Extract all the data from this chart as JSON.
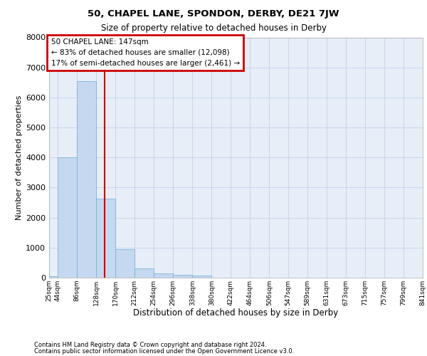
{
  "title": "50, CHAPEL LANE, SPONDON, DERBY, DE21 7JW",
  "subtitle": "Size of property relative to detached houses in Derby",
  "xlabel": "Distribution of detached houses by size in Derby",
  "ylabel": "Number of detached properties",
  "bar_color": "#c5d8f0",
  "bar_edge_color": "#6baed6",
  "grid_color": "#c8d8ec",
  "background_color": "#e8eef8",
  "bin_edges": [
    25,
    44,
    86,
    128,
    170,
    212,
    254,
    296,
    338,
    380,
    422,
    464,
    506,
    547,
    589,
    631,
    673,
    715,
    757,
    799,
    841
  ],
  "bar_heights": [
    50,
    4000,
    6550,
    2620,
    950,
    300,
    150,
    100,
    75,
    0,
    0,
    0,
    0,
    0,
    0,
    0,
    0,
    0,
    0,
    0
  ],
  "property_size": 147,
  "red_line_color": "#cc0000",
  "annotation_text": "50 CHAPEL LANE: 147sqm\n← 83% of detached houses are smaller (12,098)\n17% of semi-detached houses are larger (2,461) →",
  "annotation_box_edgecolor": "#cc0000",
  "ylim": [
    0,
    8000
  ],
  "yticks": [
    0,
    1000,
    2000,
    3000,
    4000,
    5000,
    6000,
    7000,
    8000
  ],
  "footer_line1": "Contains HM Land Registry data © Crown copyright and database right 2024.",
  "footer_line2": "Contains public sector information licensed under the Open Government Licence v3.0."
}
